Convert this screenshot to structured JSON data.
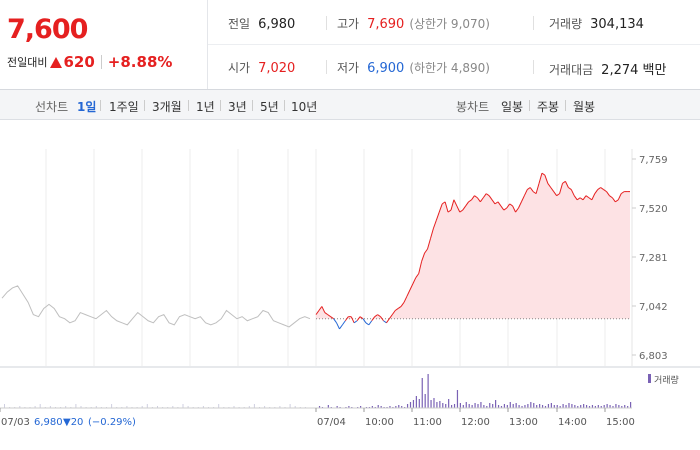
{
  "quote": {
    "price": "7,600",
    "change_label": "전일대비",
    "change_value": "620",
    "change_pct": "+8.88%",
    "prev_close_label": "전일",
    "prev_close": "6,980",
    "open_label": "시가",
    "open": "7,020",
    "high_label": "고가",
    "high": "7,690",
    "upper_limit": "(상한가 9,070)",
    "low_label": "저가",
    "low": "6,900",
    "lower_limit": "(하한가 4,890)",
    "volume_label": "거래량",
    "volume": "304,134",
    "amount_label": "거래대금",
    "amount": "2,274 백만"
  },
  "tabs": {
    "line_label": "선차트",
    "periods": [
      "1일",
      "1주일",
      "3개월",
      "1년",
      "3년",
      "5년",
      "10년"
    ],
    "active_period": 0,
    "candle_label": "봉차트",
    "candles": [
      "일봉",
      "주봉",
      "월봉"
    ]
  },
  "chart_data": {
    "type": "line",
    "y_ticks": [
      "7,759",
      "7,520",
      "7,281",
      "7,042",
      "6,803"
    ],
    "ylim": [
      6803,
      7759
    ],
    "x_labels": [
      "07/03",
      "07/04",
      "10:00",
      "11:00",
      "12:00",
      "13:00",
      "14:00",
      "15:00"
    ],
    "prev_day_info": {
      "date": "07/03",
      "close": "6,980",
      "change": "▼20",
      "change_pct": "(−0.29%)"
    },
    "prev_close_ref": 6980,
    "volume_legend": "거래량",
    "colors": {
      "up": "#e52020",
      "down": "#2467d4",
      "prev": "#bfbfbf",
      "fill": "#fde2e4",
      "volume": "#7a62b5"
    },
    "prev_day_series": [
      7080,
      7110,
      7130,
      7140,
      7100,
      7060,
      7000,
      6990,
      7030,
      7050,
      7030,
      6990,
      6980,
      6960,
      6970,
      7010,
      7000,
      6990,
      6980,
      7000,
      7020,
      6990,
      6970,
      6960,
      6950,
      6980,
      7010,
      6990,
      6970,
      6960,
      6990,
      7000,
      6960,
      6950,
      6990,
      7000,
      6990,
      6980,
      6990,
      6960,
      6950,
      6960,
      6980,
      7020,
      7000,
      6980,
      6990,
      6970,
      6980,
      6990,
      7020,
      7010,
      6970,
      6960,
      6950,
      6940,
      6960,
      6980,
      6990,
      6980
    ],
    "today_series": [
      7000,
      7020,
      7040,
      7010,
      7000,
      6990,
      6980,
      6960,
      6930,
      6950,
      6970,
      6990,
      6990,
      6960,
      6970,
      6990,
      6980,
      6960,
      6950,
      6970,
      6990,
      7000,
      6990,
      6970,
      6960,
      6980,
      7000,
      7020,
      7030,
      7040,
      7060,
      7090,
      7120,
      7150,
      7180,
      7200,
      7260,
      7300,
      7320,
      7370,
      7420,
      7460,
      7500,
      7540,
      7550,
      7500,
      7510,
      7560,
      7530,
      7500,
      7510,
      7530,
      7550,
      7560,
      7580,
      7570,
      7550,
      7570,
      7590,
      7580,
      7560,
      7540,
      7550,
      7530,
      7510,
      7520,
      7540,
      7530,
      7500,
      7520,
      7550,
      7580,
      7610,
      7620,
      7600,
      7590,
      7640,
      7690,
      7680,
      7640,
      7620,
      7600,
      7580,
      7590,
      7640,
      7650,
      7620,
      7610,
      7580,
      7560,
      7570,
      7560,
      7580,
      7570,
      7560,
      7590,
      7610,
      7620,
      7610,
      7600,
      7580,
      7570,
      7550,
      7560,
      7590,
      7600,
      7600,
      7600
    ],
    "volumes": [
      0,
      2,
      1,
      0,
      3,
      1,
      0,
      2,
      1,
      0,
      1,
      2,
      1,
      0,
      1,
      2,
      0,
      1,
      1,
      2,
      1,
      3,
      2,
      1,
      1,
      2,
      1,
      2,
      3,
      2,
      1,
      4,
      6,
      8,
      12,
      9,
      30,
      14,
      34,
      8,
      10,
      6,
      7,
      5,
      4,
      9,
      3,
      4,
      18,
      5,
      3,
      6,
      4,
      3,
      5,
      4,
      6,
      3,
      2,
      5,
      4,
      8,
      3,
      2,
      4,
      3,
      6,
      4,
      5,
      3,
      2,
      3,
      4,
      6,
      5,
      3,
      4,
      3,
      2,
      4,
      5,
      3,
      3,
      2,
      4,
      3,
      5,
      4,
      3,
      2,
      3,
      4,
      3,
      2,
      3,
      2,
      3,
      2,
      3,
      4,
      3,
      2,
      4,
      3,
      2,
      3,
      2,
      6
    ]
  }
}
